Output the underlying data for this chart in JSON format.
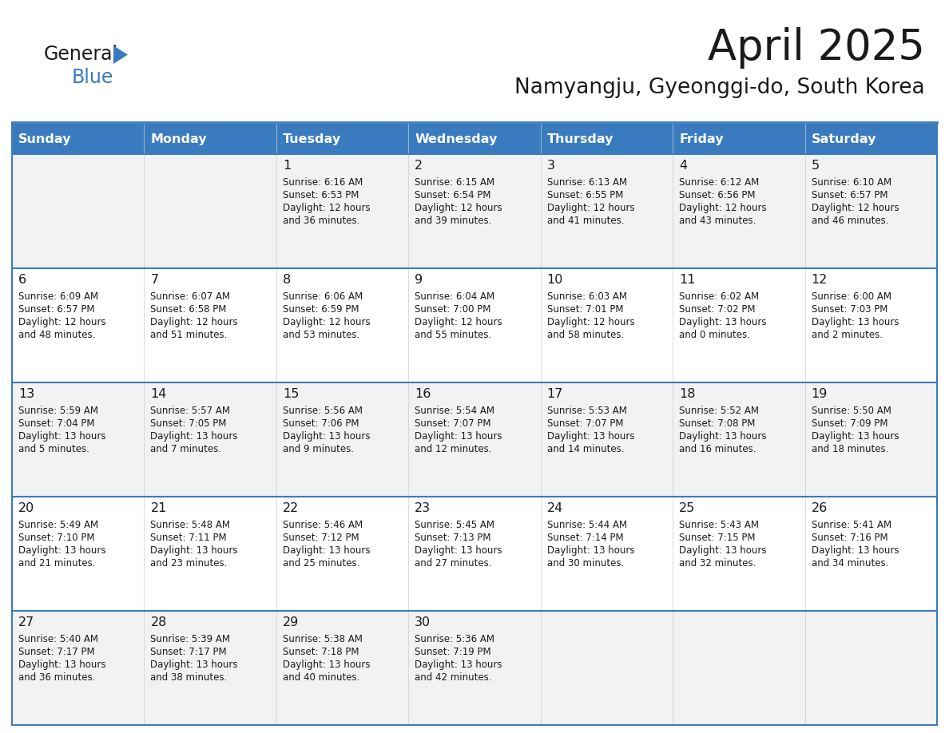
{
  "title": "April 2025",
  "subtitle": "Namyangju, Gyeonggi-do, South Korea",
  "header_color": "#3a7bbf",
  "header_text_color": "#ffffff",
  "cell_bg_even": "#f2f2f2",
  "cell_bg_odd": "#ffffff",
  "day_names": [
    "Sunday",
    "Monday",
    "Tuesday",
    "Wednesday",
    "Thursday",
    "Friday",
    "Saturday"
  ],
  "title_color": "#1a1a1a",
  "subtitle_color": "#1a1a1a",
  "text_color": "#1a1a1a",
  "line_color": "#3a7bbf",
  "logo_general_color": "#1a1a1a",
  "logo_blue_color": "#3a7bbf",
  "logo_triangle_color": "#3a7bbf",
  "days": [
    {
      "day": 1,
      "col": 2,
      "row": 0,
      "sunrise": "6:16 AM",
      "sunset": "6:53 PM",
      "daylight_hours": 12,
      "daylight_minutes": 36
    },
    {
      "day": 2,
      "col": 3,
      "row": 0,
      "sunrise": "6:15 AM",
      "sunset": "6:54 PM",
      "daylight_hours": 12,
      "daylight_minutes": 39
    },
    {
      "day": 3,
      "col": 4,
      "row": 0,
      "sunrise": "6:13 AM",
      "sunset": "6:55 PM",
      "daylight_hours": 12,
      "daylight_minutes": 41
    },
    {
      "day": 4,
      "col": 5,
      "row": 0,
      "sunrise": "6:12 AM",
      "sunset": "6:56 PM",
      "daylight_hours": 12,
      "daylight_minutes": 43
    },
    {
      "day": 5,
      "col": 6,
      "row": 0,
      "sunrise": "6:10 AM",
      "sunset": "6:57 PM",
      "daylight_hours": 12,
      "daylight_minutes": 46
    },
    {
      "day": 6,
      "col": 0,
      "row": 1,
      "sunrise": "6:09 AM",
      "sunset": "6:57 PM",
      "daylight_hours": 12,
      "daylight_minutes": 48
    },
    {
      "day": 7,
      "col": 1,
      "row": 1,
      "sunrise": "6:07 AM",
      "sunset": "6:58 PM",
      "daylight_hours": 12,
      "daylight_minutes": 51
    },
    {
      "day": 8,
      "col": 2,
      "row": 1,
      "sunrise": "6:06 AM",
      "sunset": "6:59 PM",
      "daylight_hours": 12,
      "daylight_minutes": 53
    },
    {
      "day": 9,
      "col": 3,
      "row": 1,
      "sunrise": "6:04 AM",
      "sunset": "7:00 PM",
      "daylight_hours": 12,
      "daylight_minutes": 55
    },
    {
      "day": 10,
      "col": 4,
      "row": 1,
      "sunrise": "6:03 AM",
      "sunset": "7:01 PM",
      "daylight_hours": 12,
      "daylight_minutes": 58
    },
    {
      "day": 11,
      "col": 5,
      "row": 1,
      "sunrise": "6:02 AM",
      "sunset": "7:02 PM",
      "daylight_hours": 13,
      "daylight_minutes": 0
    },
    {
      "day": 12,
      "col": 6,
      "row": 1,
      "sunrise": "6:00 AM",
      "sunset": "7:03 PM",
      "daylight_hours": 13,
      "daylight_minutes": 2
    },
    {
      "day": 13,
      "col": 0,
      "row": 2,
      "sunrise": "5:59 AM",
      "sunset": "7:04 PM",
      "daylight_hours": 13,
      "daylight_minutes": 5
    },
    {
      "day": 14,
      "col": 1,
      "row": 2,
      "sunrise": "5:57 AM",
      "sunset": "7:05 PM",
      "daylight_hours": 13,
      "daylight_minutes": 7
    },
    {
      "day": 15,
      "col": 2,
      "row": 2,
      "sunrise": "5:56 AM",
      "sunset": "7:06 PM",
      "daylight_hours": 13,
      "daylight_minutes": 9
    },
    {
      "day": 16,
      "col": 3,
      "row": 2,
      "sunrise": "5:54 AM",
      "sunset": "7:07 PM",
      "daylight_hours": 13,
      "daylight_minutes": 12
    },
    {
      "day": 17,
      "col": 4,
      "row": 2,
      "sunrise": "5:53 AM",
      "sunset": "7:07 PM",
      "daylight_hours": 13,
      "daylight_minutes": 14
    },
    {
      "day": 18,
      "col": 5,
      "row": 2,
      "sunrise": "5:52 AM",
      "sunset": "7:08 PM",
      "daylight_hours": 13,
      "daylight_minutes": 16
    },
    {
      "day": 19,
      "col": 6,
      "row": 2,
      "sunrise": "5:50 AM",
      "sunset": "7:09 PM",
      "daylight_hours": 13,
      "daylight_minutes": 18
    },
    {
      "day": 20,
      "col": 0,
      "row": 3,
      "sunrise": "5:49 AM",
      "sunset": "7:10 PM",
      "daylight_hours": 13,
      "daylight_minutes": 21
    },
    {
      "day": 21,
      "col": 1,
      "row": 3,
      "sunrise": "5:48 AM",
      "sunset": "7:11 PM",
      "daylight_hours": 13,
      "daylight_minutes": 23
    },
    {
      "day": 22,
      "col": 2,
      "row": 3,
      "sunrise": "5:46 AM",
      "sunset": "7:12 PM",
      "daylight_hours": 13,
      "daylight_minutes": 25
    },
    {
      "day": 23,
      "col": 3,
      "row": 3,
      "sunrise": "5:45 AM",
      "sunset": "7:13 PM",
      "daylight_hours": 13,
      "daylight_minutes": 27
    },
    {
      "day": 24,
      "col": 4,
      "row": 3,
      "sunrise": "5:44 AM",
      "sunset": "7:14 PM",
      "daylight_hours": 13,
      "daylight_minutes": 30
    },
    {
      "day": 25,
      "col": 5,
      "row": 3,
      "sunrise": "5:43 AM",
      "sunset": "7:15 PM",
      "daylight_hours": 13,
      "daylight_minutes": 32
    },
    {
      "day": 26,
      "col": 6,
      "row": 3,
      "sunrise": "5:41 AM",
      "sunset": "7:16 PM",
      "daylight_hours": 13,
      "daylight_minutes": 34
    },
    {
      "day": 27,
      "col": 0,
      "row": 4,
      "sunrise": "5:40 AM",
      "sunset": "7:17 PM",
      "daylight_hours": 13,
      "daylight_minutes": 36
    },
    {
      "day": 28,
      "col": 1,
      "row": 4,
      "sunrise": "5:39 AM",
      "sunset": "7:17 PM",
      "daylight_hours": 13,
      "daylight_minutes": 38
    },
    {
      "day": 29,
      "col": 2,
      "row": 4,
      "sunrise": "5:38 AM",
      "sunset": "7:18 PM",
      "daylight_hours": 13,
      "daylight_minutes": 40
    },
    {
      "day": 30,
      "col": 3,
      "row": 4,
      "sunrise": "5:36 AM",
      "sunset": "7:19 PM",
      "daylight_hours": 13,
      "daylight_minutes": 42
    }
  ]
}
